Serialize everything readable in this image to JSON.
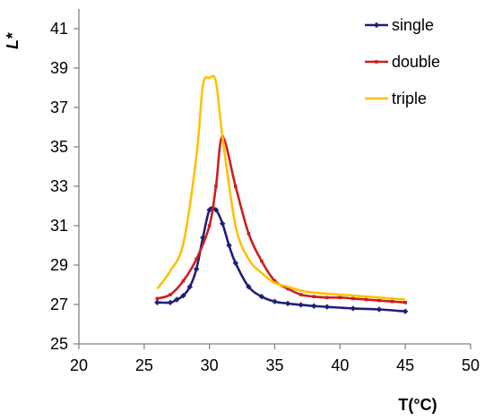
{
  "chart_data": {
    "type": "line",
    "xlabel": "T(°C)",
    "ylabel": "L*",
    "xlim": [
      20,
      50
    ],
    "ylim": [
      25,
      42
    ],
    "xticks": [
      20,
      25,
      30,
      35,
      40,
      45,
      50
    ],
    "yticks": [
      25,
      27,
      29,
      31,
      33,
      35,
      37,
      39,
      41
    ],
    "grid": false,
    "legend_position": "top-right",
    "series": [
      {
        "name": "single",
        "color": "#1F1F7A",
        "marker": "diamond",
        "x": [
          26,
          27,
          27.5,
          28,
          28.5,
          29,
          29.5,
          30,
          30.5,
          31,
          31.5,
          32,
          33,
          34,
          35,
          36,
          37,
          38,
          39,
          41,
          43,
          45
        ],
        "y": [
          27.1,
          27.1,
          27.25,
          27.45,
          27.9,
          28.8,
          30.4,
          31.8,
          31.8,
          31.1,
          30.0,
          29.1,
          27.9,
          27.4,
          27.15,
          27.05,
          26.98,
          26.92,
          26.88,
          26.8,
          26.75,
          26.65
        ]
      },
      {
        "name": "double",
        "color": "#CC1F1F",
        "marker": "dot",
        "x": [
          26,
          27,
          28,
          29,
          30,
          30.5,
          31,
          32,
          33,
          34,
          35,
          36,
          37,
          38,
          39,
          40,
          41,
          42,
          43,
          44,
          45
        ],
        "y": [
          27.3,
          27.5,
          28.2,
          29.3,
          31.0,
          33.0,
          35.5,
          33.0,
          30.6,
          29.2,
          28.2,
          27.8,
          27.5,
          27.4,
          27.35,
          27.35,
          27.3,
          27.25,
          27.2,
          27.15,
          27.1
        ]
      },
      {
        "name": "triple",
        "color": "#FFC000",
        "marker": "none",
        "x": [
          26,
          27,
          28,
          29,
          29.5,
          30,
          30.5,
          31,
          32,
          33,
          34,
          35,
          36,
          37,
          38,
          40,
          42,
          44,
          45
        ],
        "y": [
          27.8,
          28.7,
          30.1,
          34.5,
          38.1,
          38.5,
          38.3,
          35.5,
          31.0,
          29.3,
          28.6,
          28.1,
          27.9,
          27.7,
          27.6,
          27.5,
          27.4,
          27.3,
          27.25
        ]
      }
    ]
  }
}
